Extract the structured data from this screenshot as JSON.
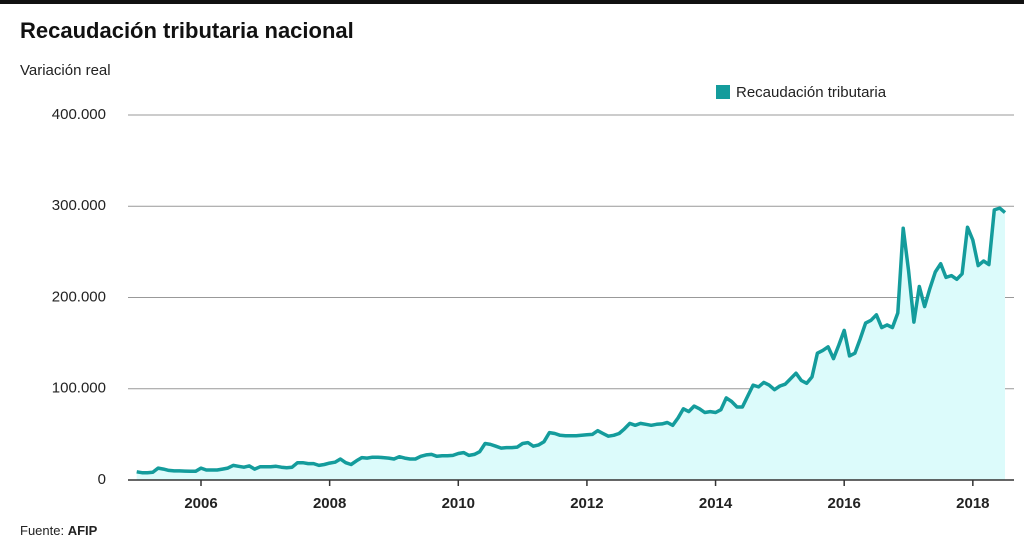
{
  "chart_data": {
    "type": "area",
    "title": "Recaudación tributaria nacional",
    "y_label": "Variación real",
    "source_label": "Fuente:",
    "source": "AFIP",
    "legend_position": "top-right",
    "grid": true,
    "area_color": "#dcfbfb",
    "xlim": [
      2004.865,
      2018.64
    ],
    "xticks": [
      2006,
      2008,
      2010,
      2012,
      2014,
      2016,
      2018
    ],
    "ylim": [
      0,
      400000
    ],
    "yticks": [
      0,
      {
        "value": 100000,
        "label": "100.000"
      },
      {
        "value": 200000,
        "label": "200.000"
      },
      {
        "value": 300000,
        "label": "300.000"
      },
      {
        "value": 400000,
        "label": "400.000"
      }
    ],
    "x": [
      2005,
      2005.083,
      2005.167,
      2005.25,
      2005.333,
      2005.417,
      2005.5,
      2005.583,
      2005.667,
      2005.75,
      2005.833,
      2005.917,
      2006,
      2006.083,
      2006.167,
      2006.25,
      2006.333,
      2006.417,
      2006.5,
      2006.583,
      2006.667,
      2006.75,
      2006.833,
      2006.917,
      2007,
      2007.083,
      2007.167,
      2007.25,
      2007.333,
      2007.417,
      2007.5,
      2007.583,
      2007.667,
      2007.75,
      2007.833,
      2007.917,
      2008,
      2008.083,
      2008.167,
      2008.25,
      2008.333,
      2008.417,
      2008.5,
      2008.583,
      2008.667,
      2008.75,
      2008.833,
      2008.917,
      2009,
      2009.083,
      2009.167,
      2009.25,
      2009.333,
      2009.417,
      2009.5,
      2009.583,
      2009.667,
      2009.75,
      2009.833,
      2009.917,
      2010,
      2010.083,
      2010.167,
      2010.25,
      2010.333,
      2010.417,
      2010.5,
      2010.583,
      2010.667,
      2010.75,
      2010.833,
      2010.917,
      2011,
      2011.083,
      2011.167,
      2011.25,
      2011.333,
      2011.417,
      2011.5,
      2011.583,
      2011.667,
      2011.75,
      2011.833,
      2011.917,
      2012,
      2012.083,
      2012.167,
      2012.25,
      2012.333,
      2012.417,
      2012.5,
      2012.583,
      2012.667,
      2012.75,
      2012.833,
      2012.917,
      2013,
      2013.083,
      2013.167,
      2013.25,
      2013.333,
      2013.417,
      2013.5,
      2013.583,
      2013.667,
      2013.75,
      2013.833,
      2013.917,
      2014,
      2014.083,
      2014.167,
      2014.25,
      2014.333,
      2014.417,
      2014.5,
      2014.583,
      2014.667,
      2014.75,
      2014.833,
      2014.917,
      2015,
      2015.083,
      2015.167,
      2015.25,
      2015.333,
      2015.417,
      2015.5,
      2015.583,
      2015.667,
      2015.75,
      2015.833,
      2015.917,
      2016,
      2016.083,
      2016.167,
      2016.25,
      2016.333,
      2016.417,
      2016.5,
      2016.583,
      2016.667,
      2016.75,
      2016.833,
      2016.917,
      2017,
      2017.083,
      2017.167,
      2017.25,
      2017.333,
      2017.417,
      2017.5,
      2017.583,
      2017.667,
      2017.75,
      2017.833,
      2017.917,
      2018,
      2018.083,
      2018.167,
      2018.25,
      2018.333,
      2018.417,
      2018.5
    ],
    "series": [
      {
        "name": "Recaudación tributaria",
        "color": "#149c9c",
        "values": [
          9000,
          8000,
          8000,
          8500,
          13000,
          12000,
          10500,
          10000,
          10000,
          9800,
          9500,
          9500,
          13000,
          11000,
          11000,
          11000,
          12000,
          13000,
          16000,
          15000,
          14000,
          15500,
          12000,
          14500,
          14500,
          14500,
          15000,
          14000,
          13500,
          14000,
          19000,
          19000,
          18000,
          18000,
          16000,
          17000,
          18500,
          19500,
          23000,
          19000,
          17000,
          21000,
          24500,
          24000,
          25000,
          25000,
          24500,
          24000,
          23000,
          25500,
          24000,
          23000,
          23000,
          26000,
          27500,
          28000,
          26000,
          26500,
          26500,
          27000,
          29000,
          30000,
          27000,
          28000,
          31000,
          40000,
          39000,
          37000,
          35000,
          35500,
          35500,
          36000,
          40000,
          41000,
          37000,
          38500,
          42000,
          52000,
          51000,
          49000,
          48500,
          48500,
          48500,
          49000,
          49500,
          50000,
          54000,
          51000,
          48000,
          49000,
          51000,
          56000,
          62000,
          60000,
          62000,
          61000,
          60000,
          61000,
          61500,
          63000,
          60000,
          68000,
          78000,
          75000,
          81000,
          78000,
          74000,
          75000,
          74000,
          77000,
          90000,
          86000,
          80000,
          80000,
          92000,
          104000,
          102000,
          107000,
          104000,
          99000,
          103000,
          105000,
          111000,
          117000,
          109000,
          106000,
          113000,
          139000,
          142000,
          146000,
          133000,
          148000,
          164000,
          136000,
          139000,
          155000,
          172000,
          175000,
          181000,
          167000,
          170000,
          167000,
          183000,
          276000,
          230000,
          173000,
          212000,
          190000,
          210000,
          228000,
          237000,
          222000,
          224000,
          220000,
          226000,
          277000,
          263000,
          235000,
          240000,
          236000,
          296000,
          298000,
          293000
        ]
      }
    ]
  }
}
